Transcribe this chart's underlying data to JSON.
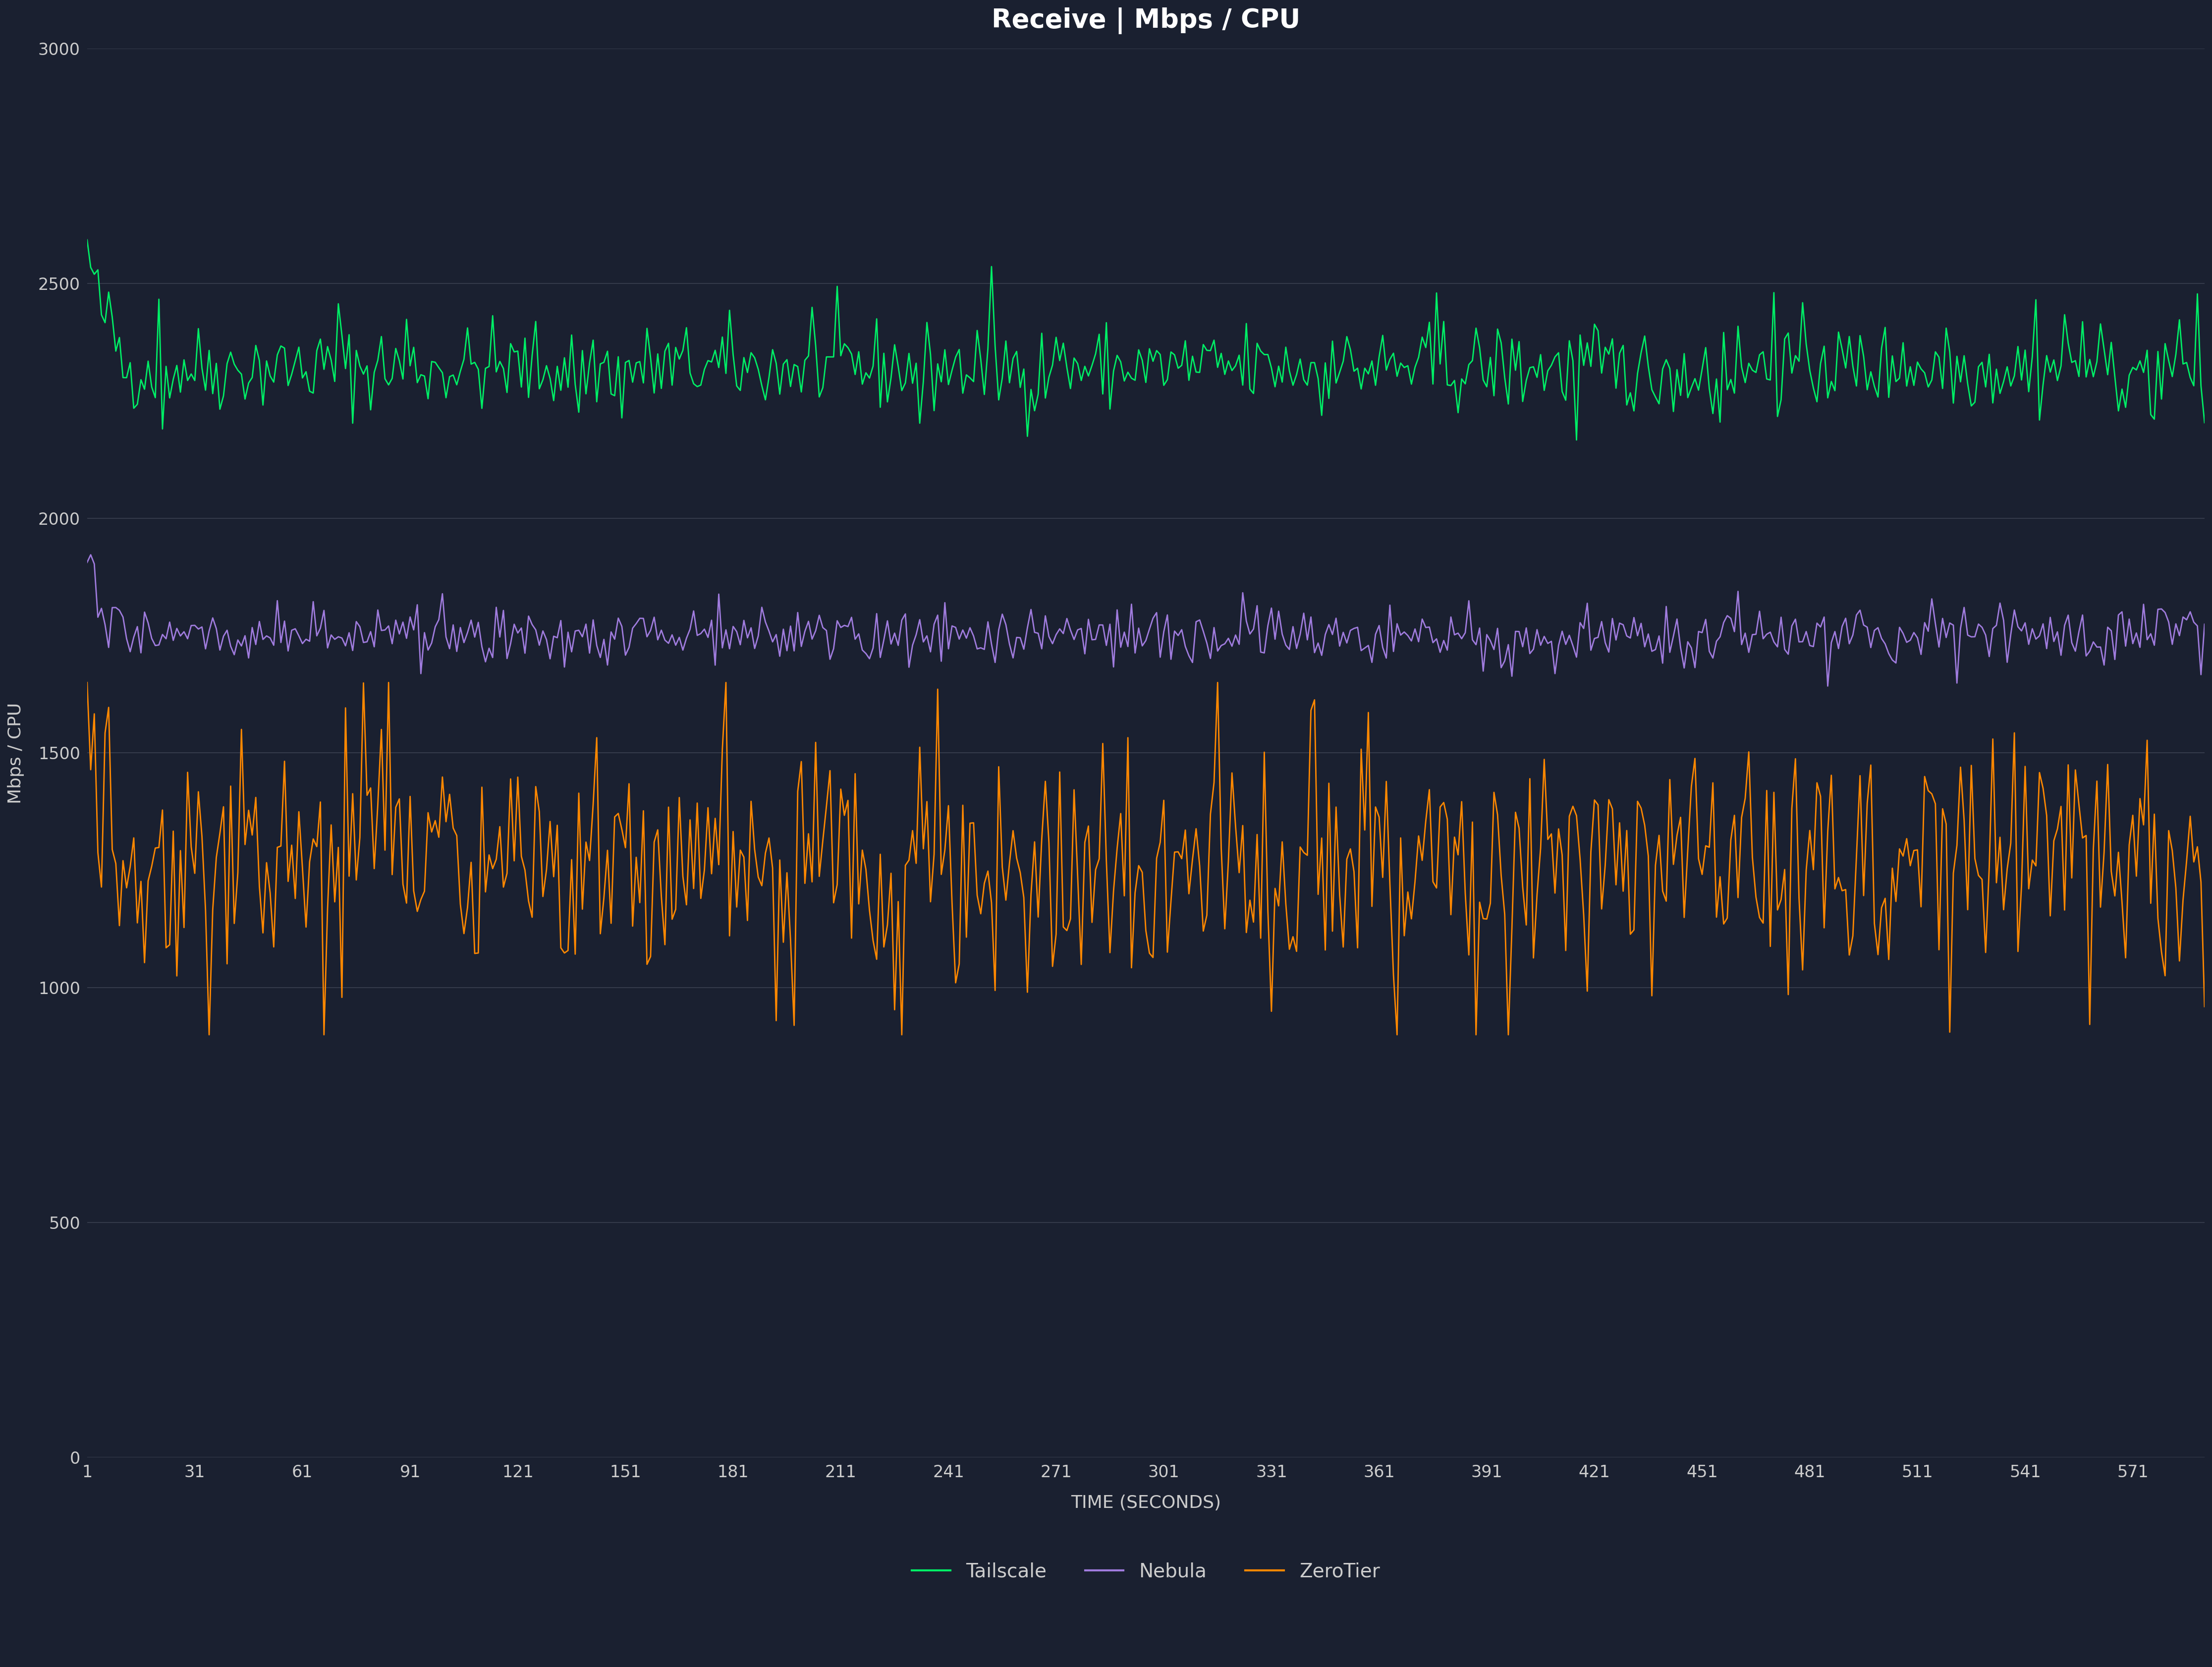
{
  "title": "Receive | Mbps / CPU",
  "xlabel": "TIME (SECONDS)",
  "ylabel": "Mbps / CPU",
  "background_color": "#1a2030",
  "grid_color": "#3a4050",
  "text_color": "#cccccc",
  "title_color": "#ffffff",
  "ylim": [
    0,
    3000
  ],
  "xlim": [
    1,
    591
  ],
  "yticks": [
    0,
    500,
    1000,
    1500,
    2000,
    2500,
    3000
  ],
  "xticks": [
    1,
    31,
    61,
    91,
    121,
    151,
    181,
    211,
    241,
    271,
    301,
    331,
    361,
    391,
    421,
    451,
    481,
    511,
    541,
    571
  ],
  "n_points": 591,
  "nebula_color": "#a07cde",
  "tailscale_color": "#00ee66",
  "zerotier_color": "#ff8800",
  "nebula_base": 1750,
  "tailscale_base": 2320,
  "zerotier_base": 1270,
  "seed": 42,
  "title_fontsize": 38,
  "label_fontsize": 26,
  "tick_fontsize": 24,
  "legend_fontsize": 28,
  "line_width": 2.0
}
